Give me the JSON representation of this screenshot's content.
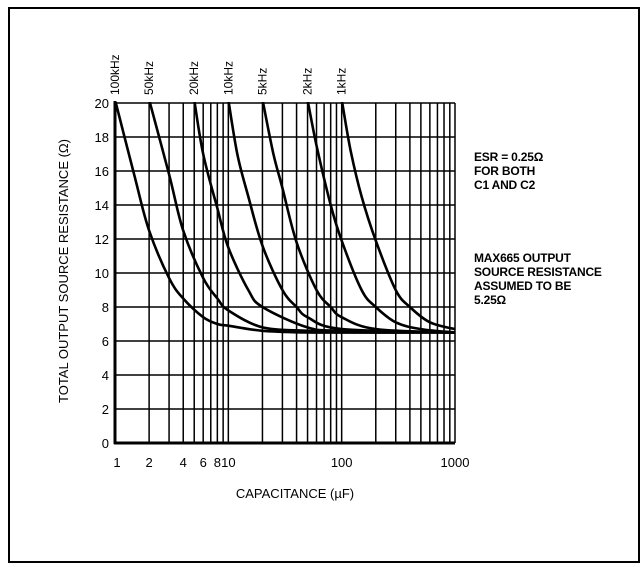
{
  "chart_data": {
    "type": "line",
    "title": "",
    "xlabel": "CAPACITANCE (µF)",
    "ylabel": "TOTAL OUTPUT SOURCE RESISTANCE (Ω)",
    "xscale": "log",
    "xlim": [
      1,
      1000
    ],
    "ylim": [
      0,
      20
    ],
    "x_ticks": [
      "1",
      "2",
      "4",
      "6",
      "8",
      "10",
      "100",
      "1000"
    ],
    "y_ticks": [
      "0",
      "2",
      "4",
      "6",
      "8",
      "10",
      "12",
      "14",
      "16",
      "18",
      "20"
    ],
    "grid": true,
    "legend": "none",
    "series": [
      {
        "name": "100kHz",
        "x": [
          1.0,
          1.5,
          2,
          3,
          4,
          6,
          8,
          10,
          20,
          50,
          100,
          1000
        ],
        "y": [
          20.2,
          15.6,
          12.5,
          9.7,
          8.5,
          7.4,
          7.0,
          6.9,
          6.6,
          6.5,
          6.5,
          6.5
        ]
      },
      {
        "name": "50kHz",
        "x": [
          2,
          3,
          4,
          6,
          8,
          10,
          20,
          50,
          100,
          1000
        ],
        "y": [
          20.2,
          15.8,
          12.5,
          9.7,
          8.5,
          7.8,
          6.8,
          6.6,
          6.5,
          6.5
        ]
      },
      {
        "name": "20kHz",
        "x": [
          5,
          6,
          8,
          10,
          15,
          20,
          50,
          100,
          1000
        ],
        "y": [
          20.2,
          17.0,
          13.8,
          11.5,
          9.0,
          8.0,
          6.8,
          6.6,
          6.5
        ]
      },
      {
        "name": "10kHz",
        "x": [
          10,
          12,
          15,
          20,
          30,
          40,
          50,
          100,
          1000
        ],
        "y": [
          20.2,
          17.0,
          14.5,
          11.6,
          9.0,
          8.0,
          7.4,
          6.7,
          6.5
        ]
      },
      {
        "name": "5kHz",
        "x": [
          20,
          25,
          30,
          40,
          60,
          80,
          100,
          200,
          1000
        ],
        "y": [
          20.2,
          17.0,
          15.0,
          11.8,
          9.0,
          8.0,
          7.4,
          6.7,
          6.5
        ]
      },
      {
        "name": "2kHz",
        "x": [
          50,
          60,
          80,
          100,
          150,
          200,
          300,
          500,
          1000
        ],
        "y": [
          20.2,
          17.5,
          14.0,
          11.9,
          9.0,
          8.0,
          7.1,
          6.7,
          6.5
        ]
      },
      {
        "name": "1kHz",
        "x": [
          100,
          120,
          150,
          200,
          300,
          400,
          600,
          1000
        ],
        "y": [
          20.2,
          17.2,
          14.5,
          11.9,
          9.0,
          8.0,
          7.1,
          6.7
        ]
      }
    ],
    "annotations": [
      {
        "lines": [
          "ESR = 0.25Ω",
          "FOR BOTH",
          "C1 AND C2"
        ]
      },
      {
        "lines": [
          "MAX665 OUTPUT",
          "SOURCE RESISTANCE",
          "ASSUMED TO BE",
          "5.25Ω"
        ]
      }
    ]
  },
  "colors": {
    "ink": "#000000",
    "background": "#ffffff"
  }
}
